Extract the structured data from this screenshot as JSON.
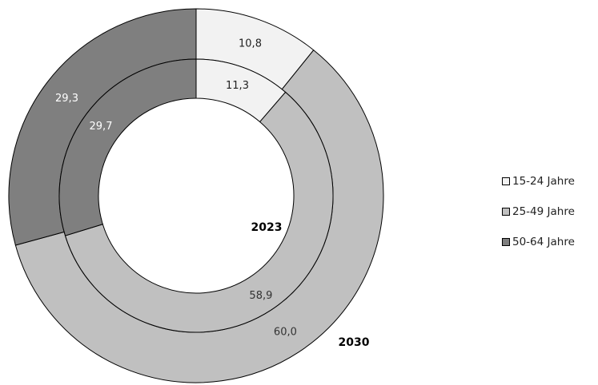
{
  "chart_data": {
    "type": "pie",
    "subtype": "donut",
    "categories": [
      "15-24 Jahre",
      "25-49 Jahre",
      "50-64 Jahre"
    ],
    "series": [
      {
        "name": "2023",
        "values": [
          11.3,
          58.9,
          29.7
        ],
        "labels": [
          "11,3",
          "58,9",
          "29,7"
        ]
      },
      {
        "name": "2030",
        "values": [
          10.8,
          60.0,
          29.3
        ],
        "labels": [
          "10,8",
          "60,0",
          "29,3"
        ]
      }
    ],
    "colors": [
      "#f2f2f2",
      "#c0c0c0",
      "#7f7f7f"
    ],
    "label_colors": [
      "#222222",
      "#333333",
      "#ffffff"
    ],
    "legend_position": "right"
  }
}
